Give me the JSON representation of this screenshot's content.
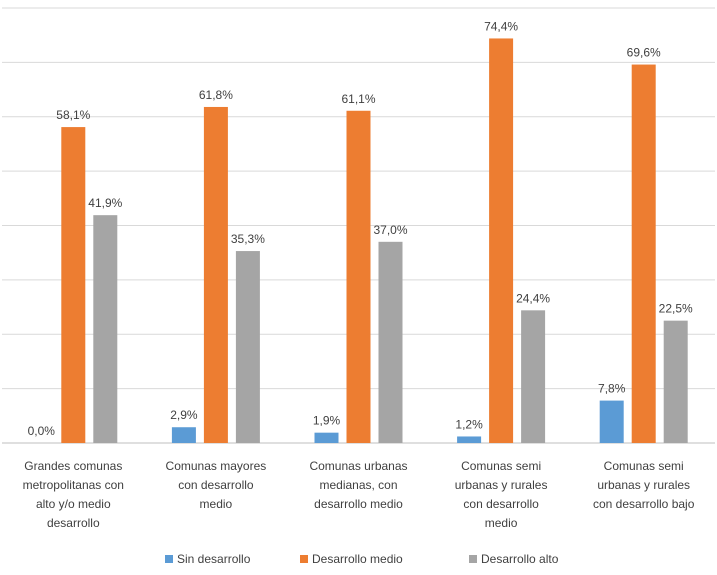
{
  "chart_data": {
    "type": "bar",
    "categories": [
      [
        "Grandes comunas",
        "metropolitanas con",
        "alto y/o medio",
        "desarrollo"
      ],
      [
        "Comunas mayores",
        "con desarrollo",
        "medio"
      ],
      [
        "Comunas urbanas",
        "medianas, con",
        "desarrollo medio"
      ],
      [
        "Comunas semi",
        "urbanas y rurales",
        "con desarrollo",
        "medio"
      ],
      [
        "Comunas semi",
        "urbanas y rurales",
        "con desarrollo bajo"
      ]
    ],
    "series": [
      {
        "name": "Sin desarrollo",
        "color": "#5b9bd5",
        "values": [
          0.0,
          2.9,
          1.9,
          1.2,
          7.8
        ],
        "labels": [
          "0,0%",
          "2,9%",
          "1,9%",
          "1,2%",
          "7,8%"
        ]
      },
      {
        "name": "Desarrollo medio",
        "color": "#ed7d31",
        "values": [
          58.1,
          61.8,
          61.1,
          74.4,
          69.6
        ],
        "labels": [
          "58,1%",
          "61,8%",
          "61,1%",
          "74,4%",
          "69,6%"
        ]
      },
      {
        "name": "Desarrollo alto",
        "color": "#a5a5a5",
        "values": [
          41.9,
          35.3,
          37.0,
          24.4,
          22.5
        ],
        "labels": [
          "41,9%",
          "35,3%",
          "37,0%",
          "24,4%",
          "22,5%"
        ]
      }
    ],
    "title": "",
    "xlabel": "",
    "ylabel": "",
    "ylim": [
      0,
      80
    ],
    "grid": true,
    "legend": "bottom"
  }
}
